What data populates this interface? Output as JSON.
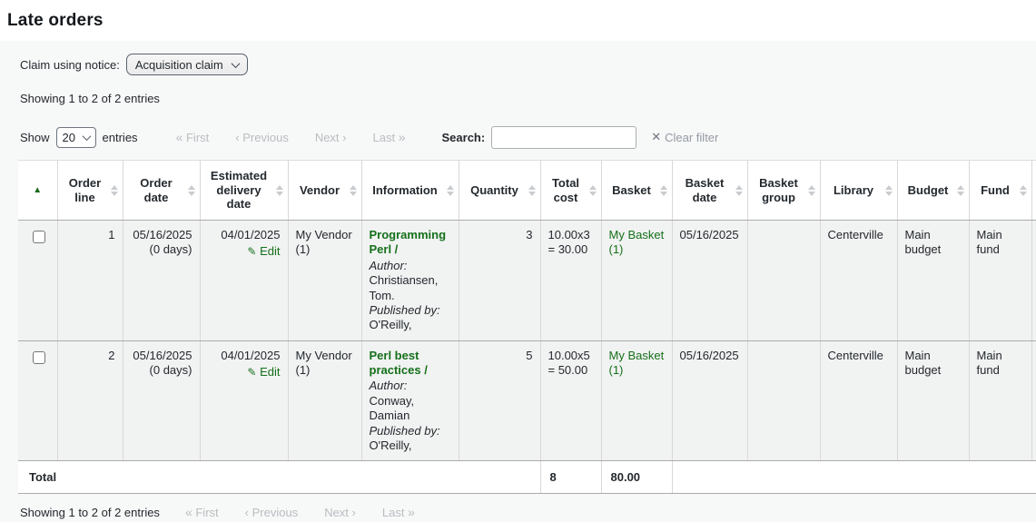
{
  "page": {
    "title": "Late orders"
  },
  "filters": {
    "claim_label": "Claim using notice:",
    "claim_value": "Acquisition claim"
  },
  "summary": {
    "showing_top": "Showing 1 to 2 of 2 entries",
    "showing_bottom": "Showing 1 to 2 of 2 entries"
  },
  "controls": {
    "show_label": "Show",
    "page_size": "20",
    "entries_label": "entries",
    "search_label": "Search:",
    "search_value": "",
    "clear_filter": "Clear filter"
  },
  "pagination": {
    "first": "First",
    "previous": "Previous",
    "next": "Next",
    "last": "Last",
    "first_icon": "«",
    "previous_icon": "‹",
    "next_icon": "›",
    "last_icon": "»"
  },
  "icons": {
    "clear": "✕",
    "edit_pencil": "✎",
    "sort_asc": "▲"
  },
  "table": {
    "headers": {
      "order_line": "Order line",
      "order_date": "Order date",
      "estimated_delivery_date": "Estimated delivery date",
      "vendor": "Vendor",
      "information": "Information",
      "quantity": "Quantity",
      "total_cost": "Total cost",
      "basket": "Basket",
      "basket_date": "Basket date",
      "basket_group": "Basket group",
      "library": "Library",
      "budget": "Budget",
      "fund": "Fund"
    },
    "rows": [
      {
        "order_line": "1",
        "order_date": "05/16/2025",
        "order_age": "(0 days)",
        "estimated_delivery_date": "04/01/2025",
        "edit_label": "Edit",
        "vendor": "My Vendor (1)",
        "title": "Programming Perl /",
        "author_label": "Author:",
        "author": "Christiansen, Tom.",
        "publisher_label": "Published by:",
        "publisher": "O'Reilly,",
        "quantity": "3",
        "total_cost": "10.00x3 = 30.00",
        "basket": "My Basket (1)",
        "basket_date": "05/16/2025",
        "basket_group": "",
        "library": "Centerville",
        "budget": "Main budget",
        "fund": "Main fund"
      },
      {
        "order_line": "2",
        "order_date": "05/16/2025",
        "order_age": "(0 days)",
        "estimated_delivery_date": "04/01/2025",
        "edit_label": "Edit",
        "vendor": "My Vendor (1)",
        "title": "Perl best practices /",
        "author_label": "Author:",
        "author": "Conway, Damian",
        "publisher_label": "Published by:",
        "publisher": "O'Reilly,",
        "quantity": "5",
        "total_cost": "10.00x5 = 50.00",
        "basket": "My Basket (1)",
        "basket_date": "05/16/2025",
        "basket_group": "",
        "library": "Centerville",
        "budget": "Main budget",
        "fund": "Main fund"
      }
    ],
    "footer": {
      "label": "Total",
      "total_quantity": "8",
      "total_cost": "80.00"
    }
  },
  "colors": {
    "link_green": "#15701a",
    "row_background": "#f1f2f2",
    "disabled_gray": "#b9bdc1"
  }
}
